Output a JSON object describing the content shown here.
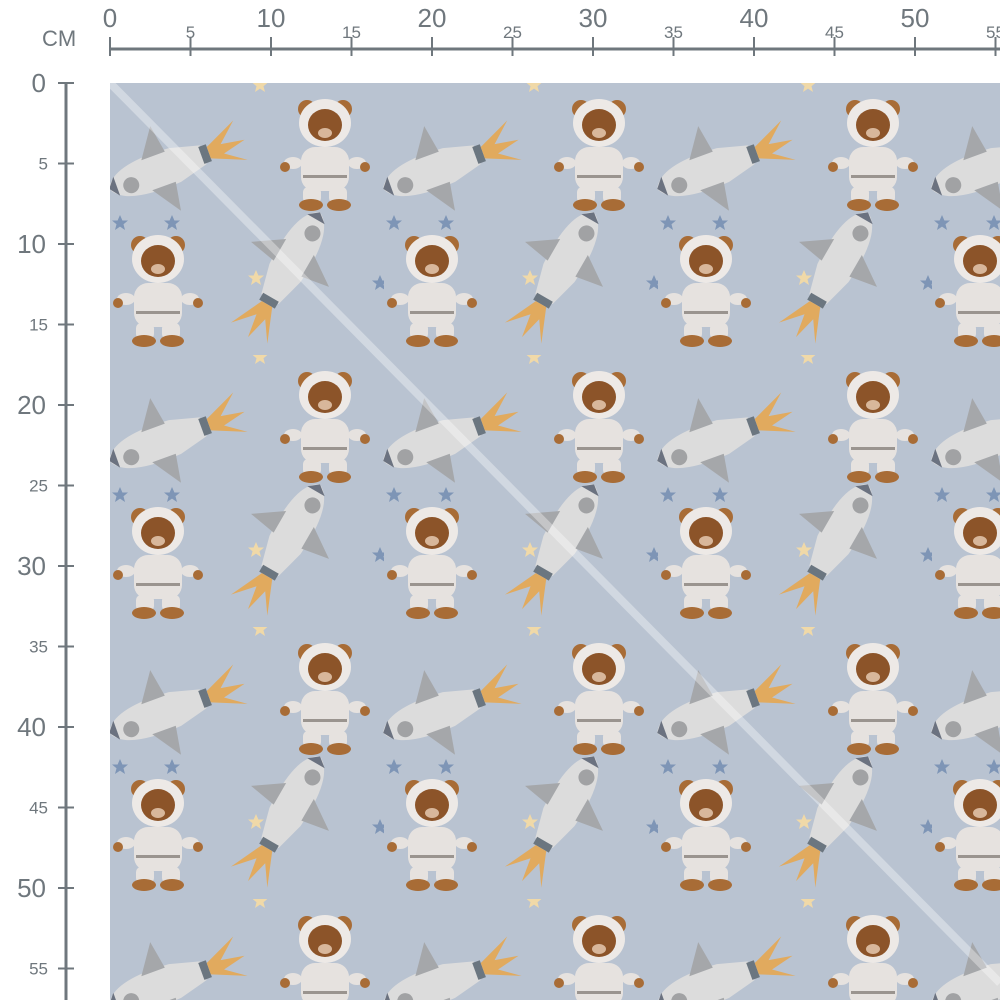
{
  "ruler": {
    "unit": "CM",
    "horizontal_labels": [
      "0",
      "5",
      "10",
      "15",
      "20",
      "25",
      "30",
      "35",
      "40",
      "45",
      "50",
      "55"
    ],
    "vertical_labels": [
      "0",
      "5",
      "10",
      "15",
      "20",
      "25",
      "30",
      "35",
      "40",
      "45",
      "50",
      "55"
    ],
    "color": "#6f777d"
  },
  "fabric": {
    "background_color": "#b9c3d1",
    "motifs": [
      "teddy-bear-astronaut",
      "rocket",
      "star"
    ]
  }
}
